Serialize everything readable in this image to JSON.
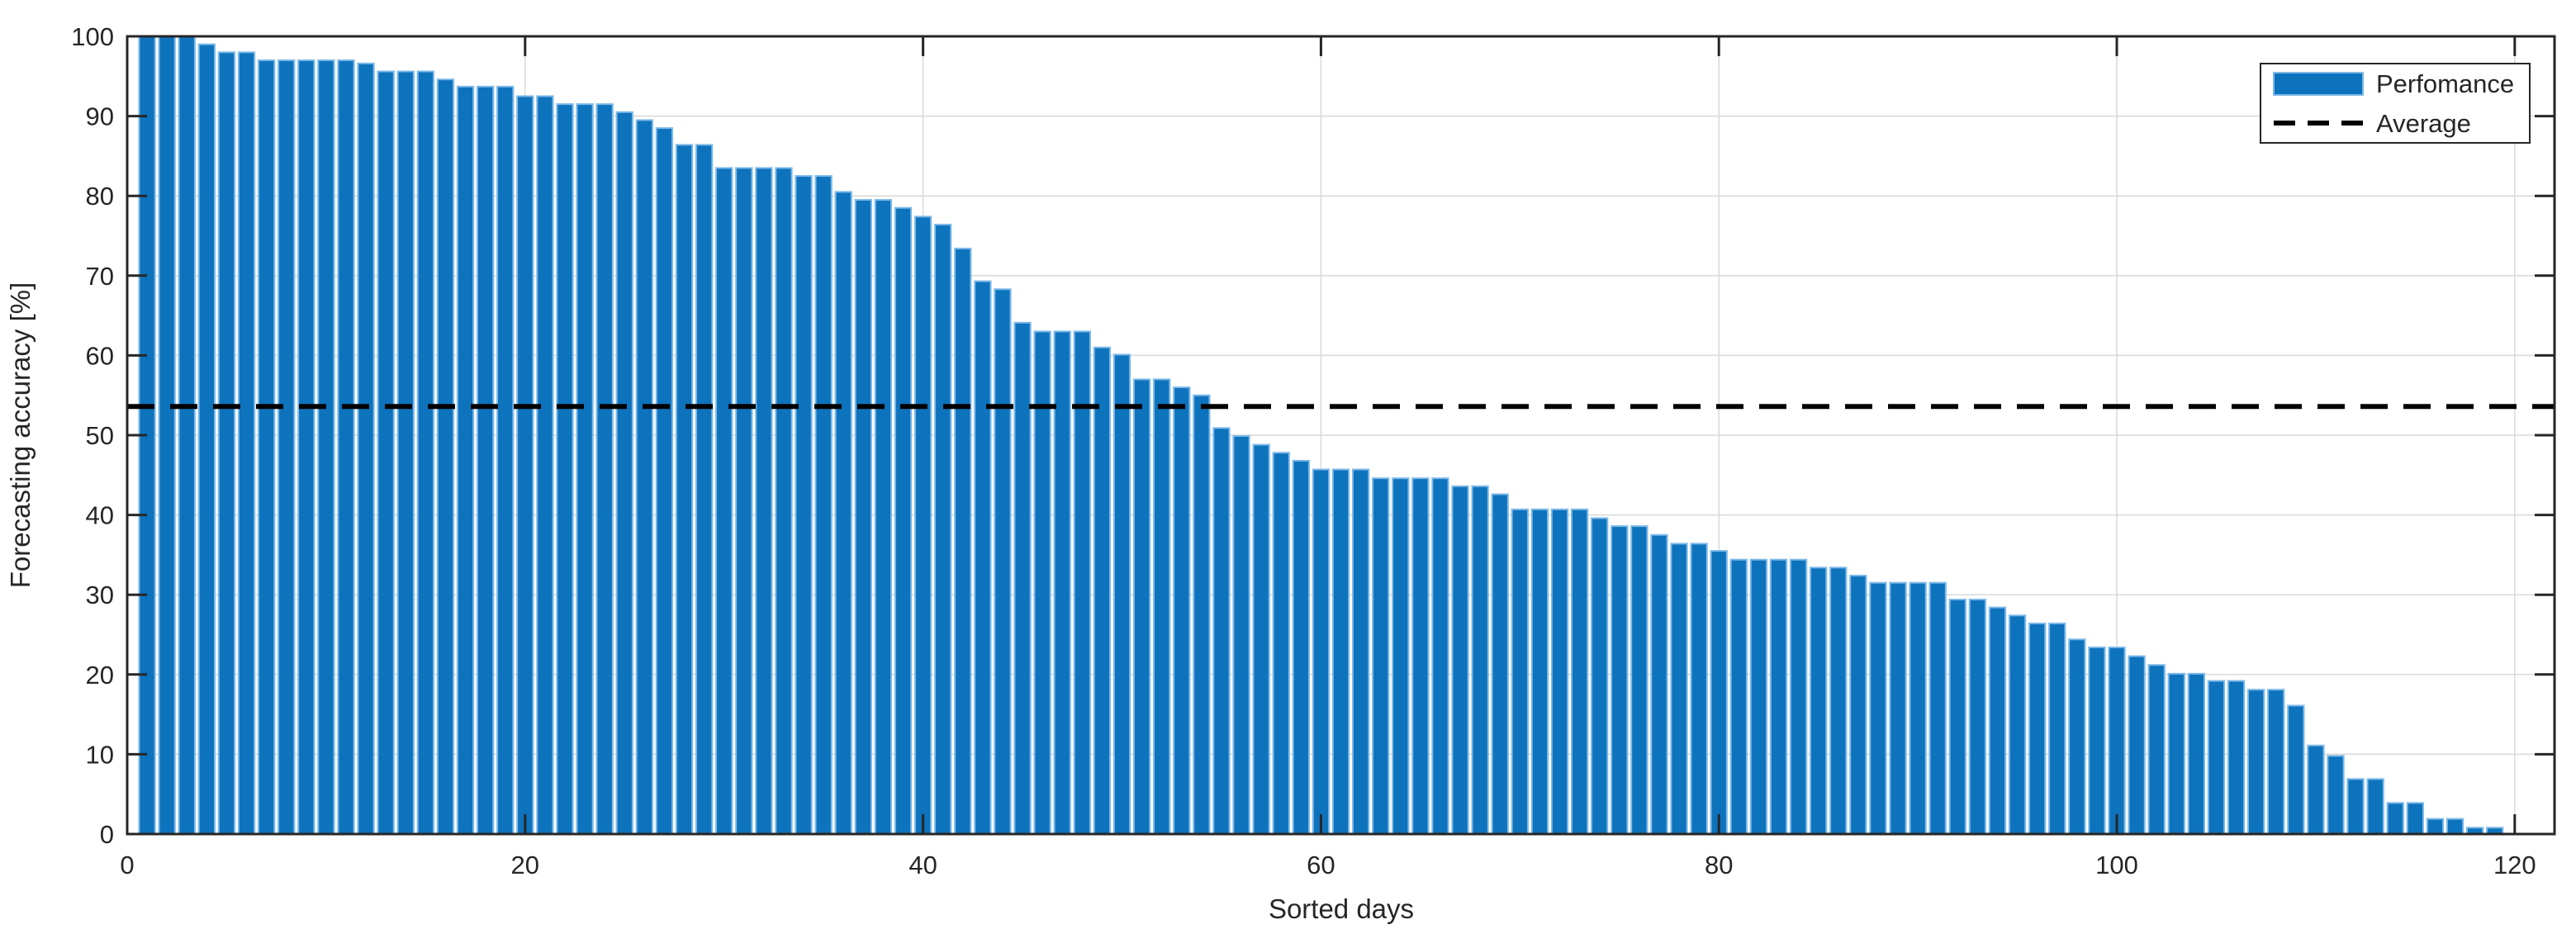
{
  "chart_data": {
    "type": "bar",
    "title": "",
    "xlabel": "Sorted days",
    "ylabel": "Forecasting accuracy [%]",
    "xlim": [
      0,
      122
    ],
    "ylim": [
      0,
      100
    ],
    "x_ticks": [
      0,
      20,
      40,
      60,
      80,
      100,
      120
    ],
    "y_ticks": [
      0,
      10,
      20,
      30,
      40,
      50,
      60,
      70,
      80,
      90,
      100
    ],
    "grid": true,
    "legend_position": "top-right",
    "days_range": [
      1,
      119
    ],
    "series": [
      {
        "name": "Perfomance",
        "type": "bar",
        "values": [
          100,
          100,
          100,
          99,
          98,
          98,
          97,
          97,
          97,
          97,
          97,
          96.6,
          95.6,
          95.6,
          95.6,
          94.6,
          93.7,
          93.7,
          93.7,
          92.5,
          92.5,
          91.5,
          91.5,
          91.5,
          90.5,
          89.5,
          88.5,
          86.4,
          86.4,
          83.5,
          83.5,
          83.5,
          83.5,
          82.5,
          82.5,
          80.5,
          79.5,
          79.5,
          78.5,
          77.4,
          76.4,
          73.4,
          69.3,
          68.3,
          64.1,
          63,
          63,
          63,
          61,
          60.1,
          57,
          57,
          56,
          55,
          50.9,
          49.9,
          48.8,
          47.8,
          46.8,
          45.7,
          45.7,
          45.7,
          44.6,
          44.6,
          44.6,
          44.6,
          43.6,
          43.6,
          42.6,
          40.7,
          40.7,
          40.7,
          40.7,
          39.6,
          38.6,
          38.6,
          37.5,
          36.4,
          36.4,
          35.5,
          34.4,
          34.4,
          34.4,
          34.4,
          33.4,
          33.4,
          32.4,
          31.5,
          31.5,
          31.5,
          31.5,
          29.4,
          29.4,
          28.4,
          27.4,
          26.4,
          26.4,
          24.4,
          23.4,
          23.4,
          22.3,
          21.2,
          20.1,
          20.1,
          19.2,
          19.2,
          18.1,
          18.1,
          16.1,
          11.1,
          9.8,
          6.9,
          6.9,
          3.9,
          3.9,
          1.9,
          1.9,
          0.8,
          0.8
        ]
      },
      {
        "name": "Average",
        "type": "dashed-line",
        "value": 53.6
      }
    ]
  },
  "legend": {
    "items": [
      {
        "label": "Perfomance",
        "swatch": "bar"
      },
      {
        "label": "Average",
        "swatch": "dashed-line"
      }
    ]
  },
  "colors": {
    "bar_fill": "#0e73bd",
    "bar_edge": "#7db9e8",
    "grid": "#d9d9d9",
    "axis": "#262626",
    "text": "#262626",
    "average_line": "#000000",
    "background": "#ffffff"
  }
}
